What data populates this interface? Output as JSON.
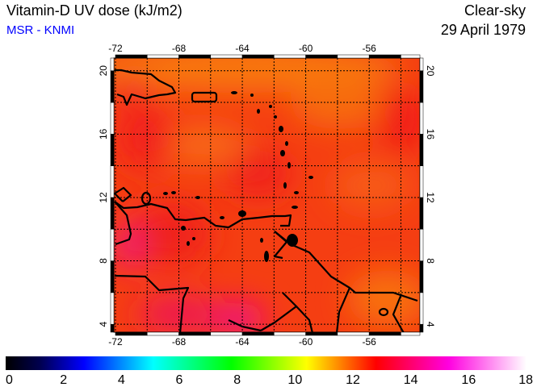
{
  "header": {
    "title": "Vitamin-D UV dose (kJ/m2)",
    "source": "MSR - KNMI",
    "condition": "Clear-sky",
    "date": "29 April 1979"
  },
  "map": {
    "lon_labels": [
      "-72",
      "-68",
      "-64",
      "-60",
      "-56"
    ],
    "lat_labels": [
      "20",
      "16",
      "12",
      "8",
      "4"
    ],
    "lon_values": [
      -72,
      -68,
      -64,
      -60,
      -56
    ],
    "lat_values": [
      20,
      16,
      12,
      8,
      4
    ],
    "lon_range": [
      -72.1,
      -52.8
    ],
    "lat_range": [
      3.5,
      20.8
    ]
  },
  "colorbar": {
    "labels": [
      "0",
      "2",
      "4",
      "6",
      "8",
      "10",
      "12",
      "14",
      "16",
      "18"
    ],
    "range": [
      0,
      18
    ],
    "stops": [
      {
        "value": 0,
        "color": "#000000"
      },
      {
        "value": 1.2,
        "color": "#000050"
      },
      {
        "value": 2.7,
        "color": "#0000ff"
      },
      {
        "value": 5.1,
        "color": "#00ffff"
      },
      {
        "value": 7.8,
        "color": "#00ff00"
      },
      {
        "value": 10.4,
        "color": "#ffff00"
      },
      {
        "value": 12.8,
        "color": "#ff0000"
      },
      {
        "value": 15.3,
        "color": "#ff00e0"
      },
      {
        "value": 18,
        "color": "#ffffff"
      }
    ]
  }
}
